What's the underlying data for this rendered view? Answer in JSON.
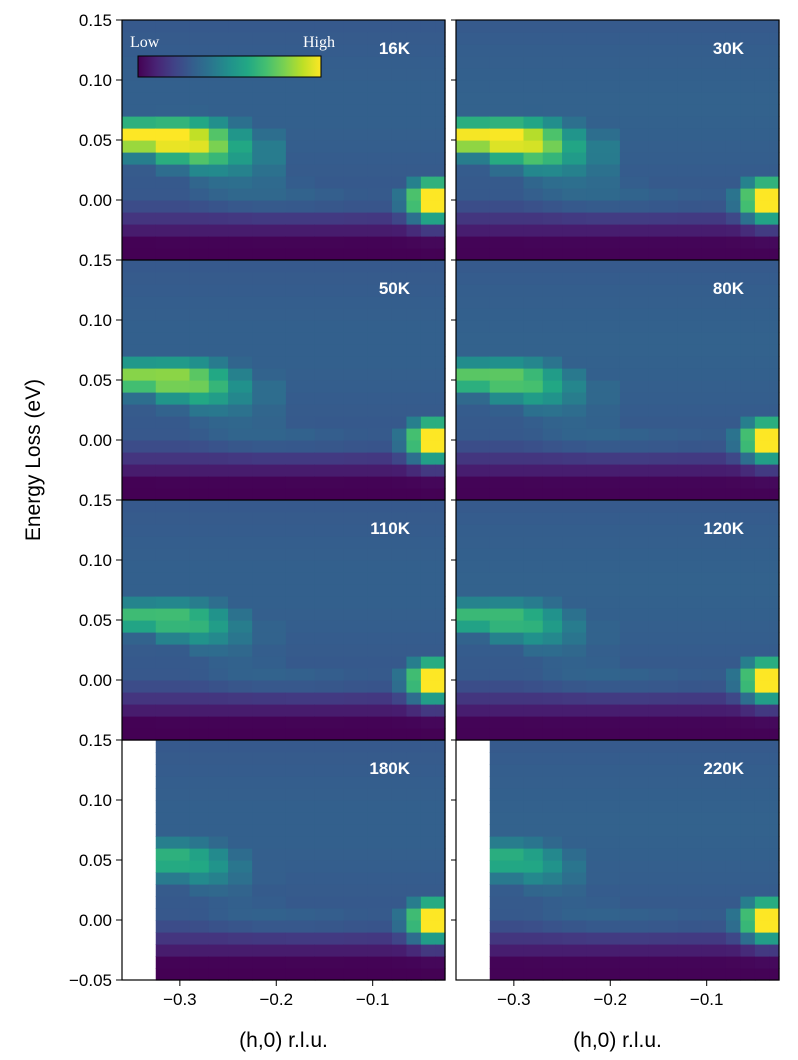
{
  "chart_data": {
    "type": "heatmap",
    "ylabel": "Energy Loss (eV)",
    "xlabel": "(h,0) r.l.u.",
    "xlim": [
      -0.36,
      -0.025
    ],
    "ylim": [
      -0.05,
      0.15
    ],
    "xticks": [
      -0.3,
      -0.2,
      -0.1
    ],
    "xtick_labels": [
      "−0.3",
      "−0.2",
      "−0.1"
    ],
    "yticks": [
      0.15,
      0.1,
      0.05,
      0.0
    ],
    "ytick_labels": [
      "0.15",
      "0.10",
      "0.05",
      "0.00"
    ],
    "bottom_ytick_label": "−0.05",
    "colorbar": {
      "low_label": "Low",
      "high_label": "High",
      "colormap": "viridis"
    },
    "x_bin_edges": [
      -0.36,
      -0.325,
      -0.29,
      -0.27,
      -0.25,
      -0.225,
      -0.19,
      -0.16,
      -0.13,
      -0.105,
      -0.08,
      -0.065,
      -0.05,
      -0.035,
      -0.025
    ],
    "y_bin_edges": [
      -0.05,
      -0.04,
      -0.03,
      -0.02,
      -0.01,
      0.0,
      0.01,
      0.02,
      0.03,
      0.04,
      0.05,
      0.06,
      0.07,
      0.08,
      0.09,
      0.1,
      0.11,
      0.12,
      0.13,
      0.14,
      0.15
    ],
    "panels": [
      {
        "label": "16K",
        "peak": 1.0,
        "h_min": -0.36
      },
      {
        "label": "30K",
        "peak": 0.97,
        "h_min": -0.36
      },
      {
        "label": "50K",
        "peak": 0.78,
        "h_min": -0.36
      },
      {
        "label": "80K",
        "peak": 0.68,
        "h_min": -0.36
      },
      {
        "label": "110K",
        "peak": 0.62,
        "h_min": -0.36
      },
      {
        "label": "120K",
        "peak": 0.6,
        "h_min": -0.36
      },
      {
        "label": "180K",
        "peak": 0.56,
        "h_min": -0.325
      },
      {
        "label": "220K",
        "peak": 0.54,
        "h_min": -0.325
      }
    ]
  }
}
